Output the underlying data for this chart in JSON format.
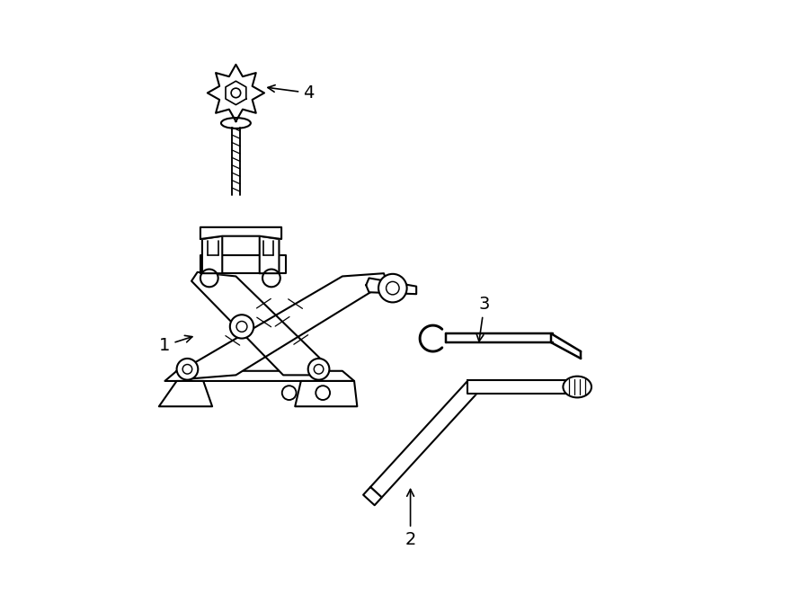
{
  "background_color": "#ffffff",
  "line_color": "#000000",
  "line_width": 1.5,
  "figsize": [
    9.0,
    6.61
  ],
  "dpi": 100
}
